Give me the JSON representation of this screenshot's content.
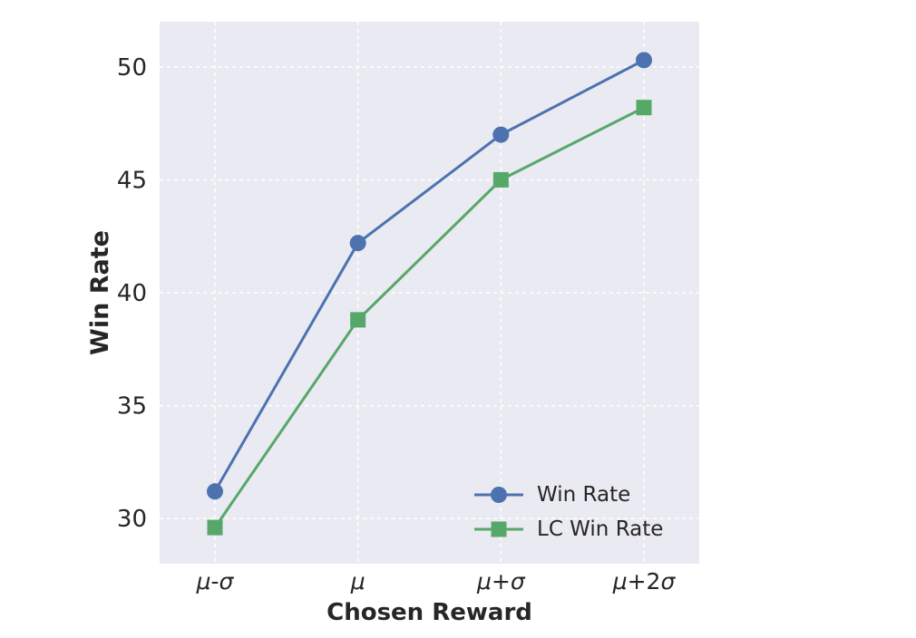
{
  "chart_data": {
    "type": "line",
    "title": "",
    "xlabel": "Chosen Reward",
    "ylabel": "Win Rate",
    "categories": [
      "μ-σ",
      "μ",
      "μ+σ",
      "μ+2σ"
    ],
    "series": [
      {
        "name": "Win Rate",
        "marker": "circle",
        "color": "#4C72B0",
        "values": [
          31.2,
          42.2,
          47.0,
          50.3
        ]
      },
      {
        "name": "LC Win Rate",
        "marker": "square",
        "color": "#55A868",
        "values": [
          29.6,
          38.8,
          45.0,
          48.2
        ]
      }
    ],
    "yticks": [
      30,
      35,
      40,
      45,
      50
    ],
    "ylim": [
      28,
      52
    ],
    "grid": true,
    "grid_style": "dashed",
    "legend_position": "lower right",
    "colors": {
      "plot_background": "#EAEAF2",
      "figure_background": "#FFFFFF",
      "grid": "#FFFFFF",
      "text": "#262626"
    }
  }
}
